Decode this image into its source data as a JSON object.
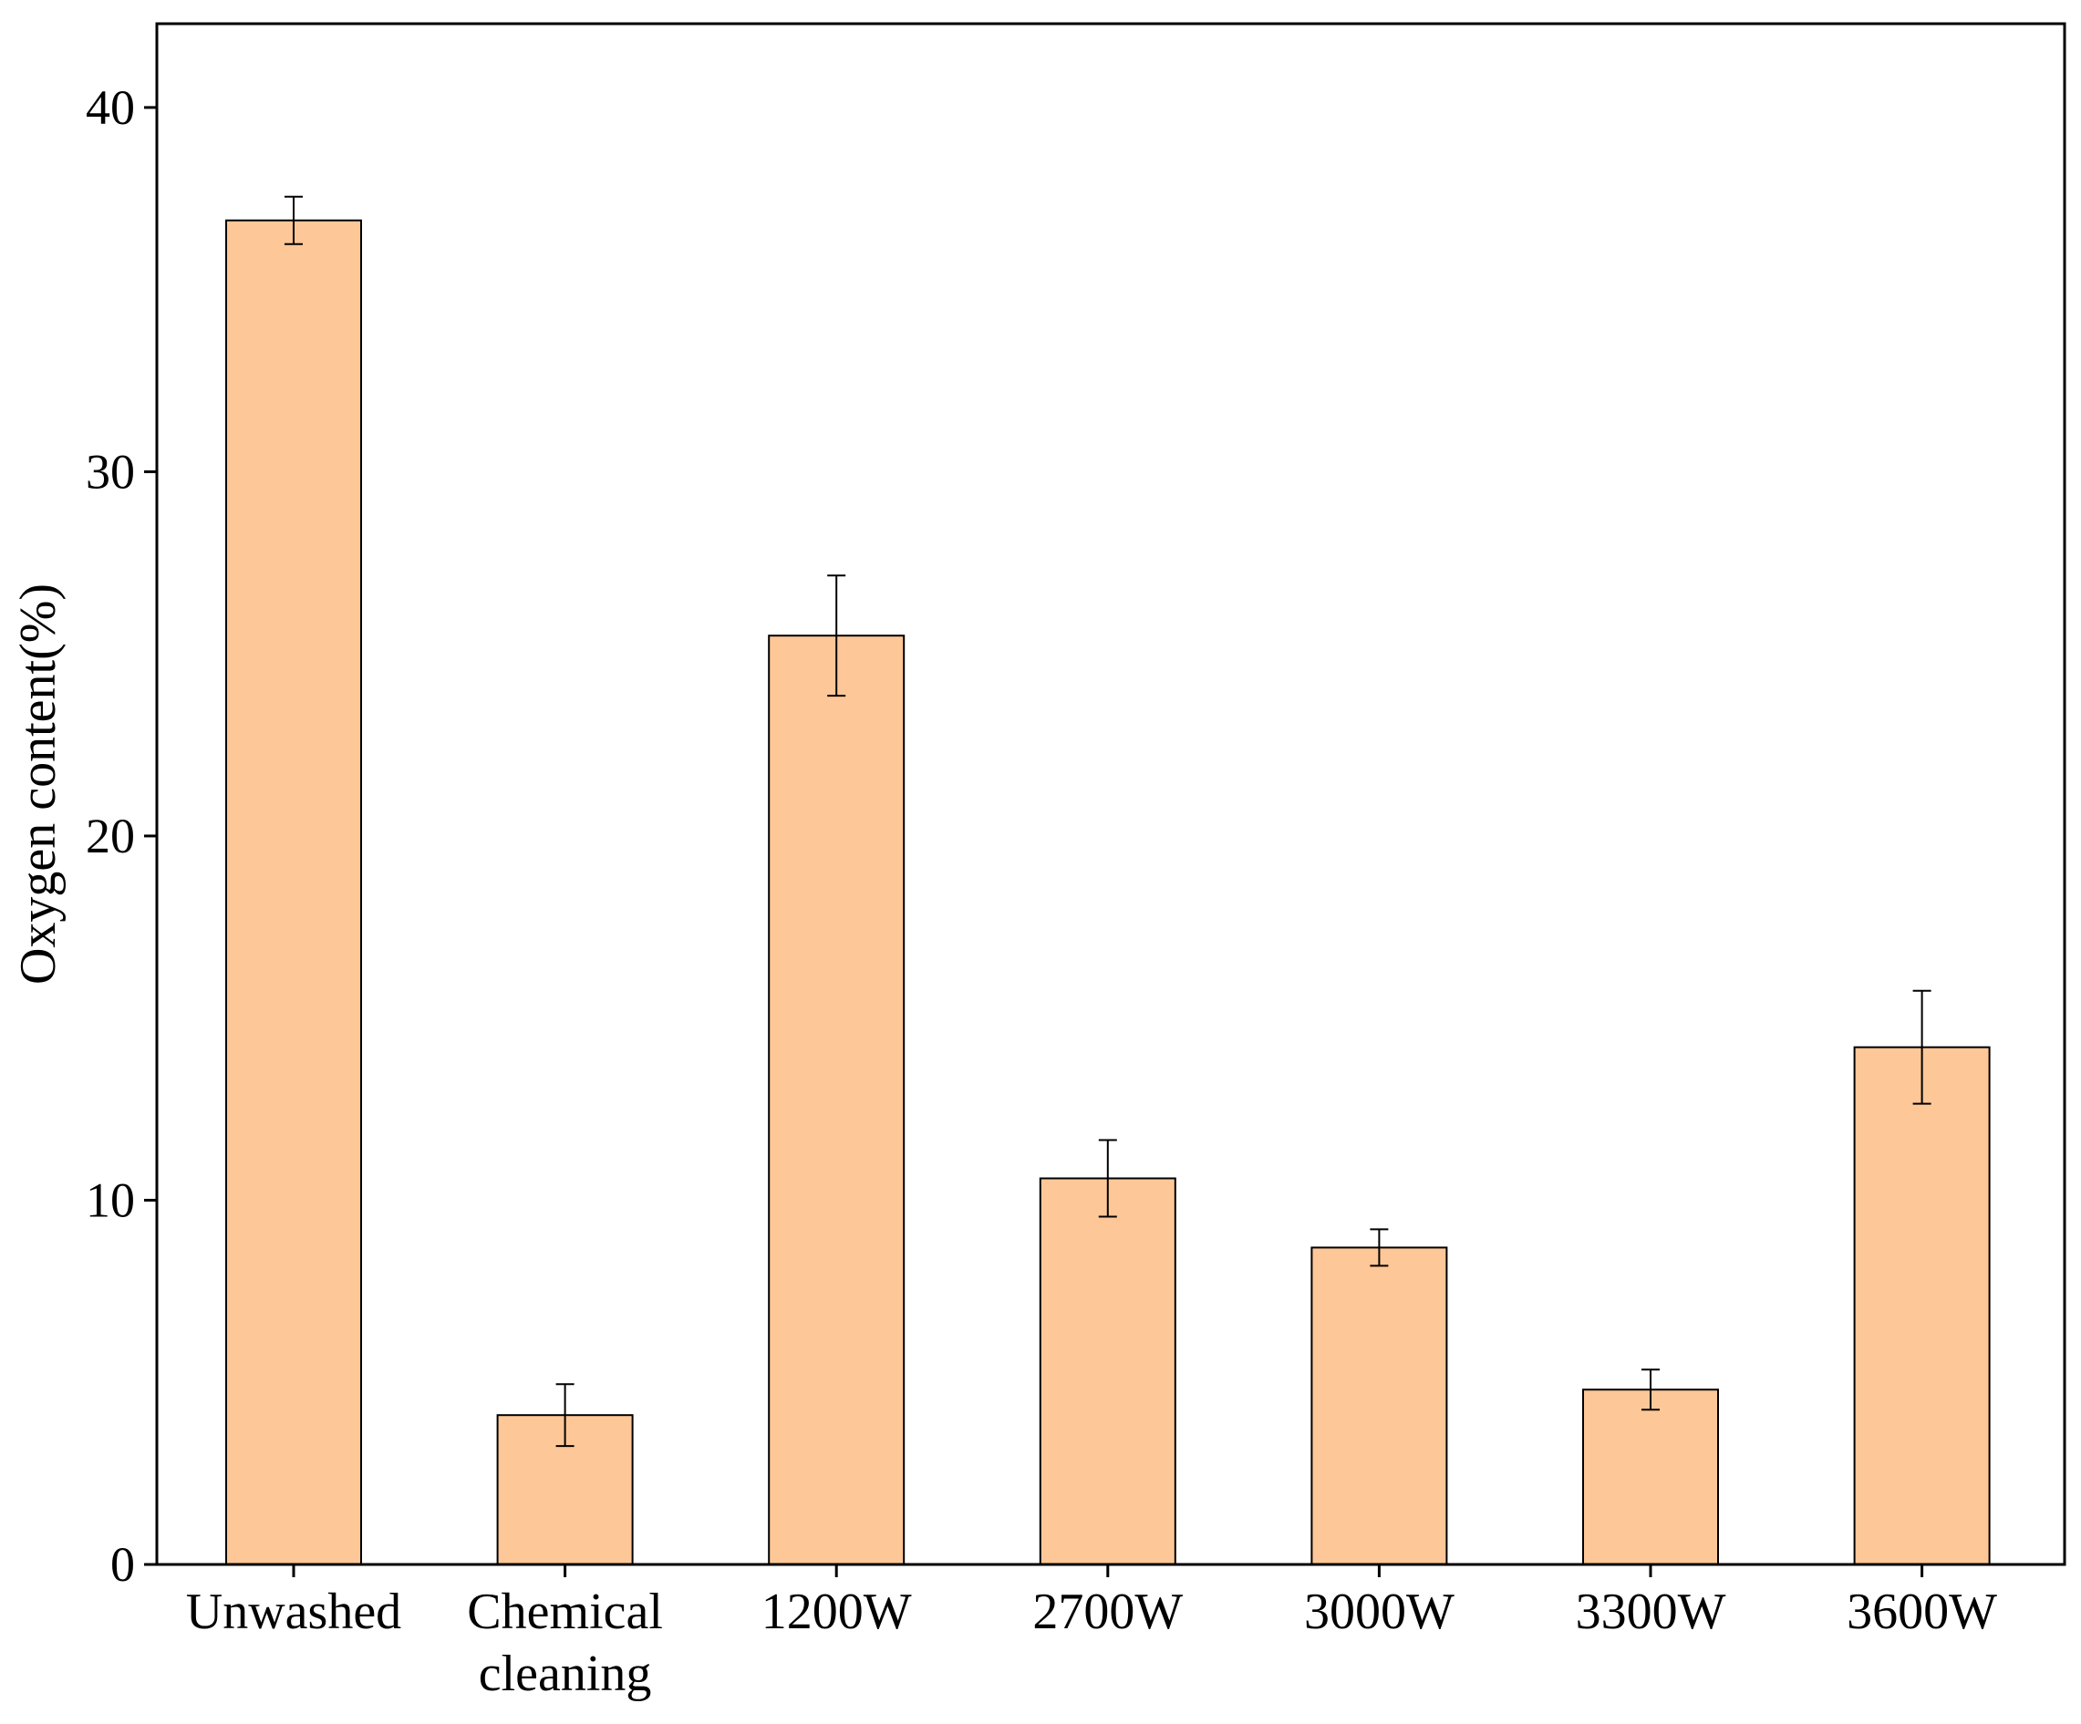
{
  "chart_data": {
    "type": "bar",
    "categories": [
      "Unwashed",
      "Chemical cleaning",
      "1200W",
      "2700W",
      "3000W",
      "3300W",
      "3600W"
    ],
    "category_lines": [
      [
        "Unwashed"
      ],
      [
        "Chemical",
        "cleaning"
      ],
      [
        "1200W"
      ],
      [
        "2700W"
      ],
      [
        "3000W"
      ],
      [
        "3300W"
      ],
      [
        "3600W"
      ]
    ],
    "values": [
      36.9,
      4.1,
      25.5,
      10.6,
      8.7,
      4.8,
      14.2
    ],
    "errors": [
      0.65,
      0.85,
      1.65,
      1.05,
      0.5,
      0.55,
      1.55
    ],
    "ylabel": "Oxygen content(%)",
    "xlabel": "",
    "ylim": [
      0,
      42.3
    ],
    "yticks": [
      0,
      10,
      20,
      30,
      40
    ],
    "grid": false,
    "bar_color": "#fdc797",
    "bar_edge_color": "#000000"
  }
}
